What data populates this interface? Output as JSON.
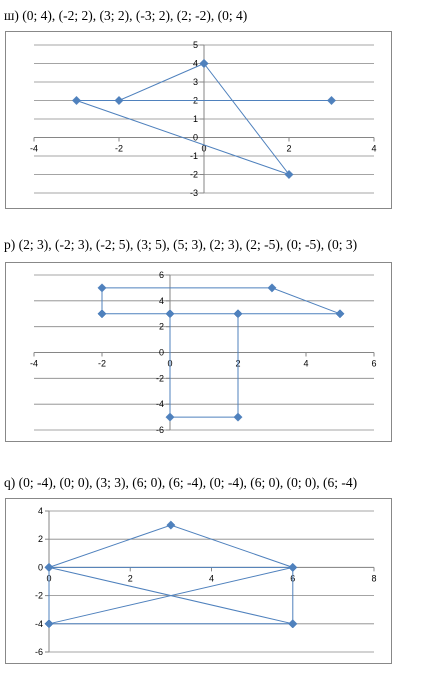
{
  "chart_data": [
    {
      "type": "scatter",
      "title": "ш) (0; 4), (-2; 2), (3; 2), (-3; 2), (2; -2), (0; 4)",
      "xlim": [
        -4,
        4
      ],
      "ylim": [
        -3,
        5
      ],
      "x_ticks": [
        -4,
        -2,
        0,
        2,
        4
      ],
      "y_ticks": [
        -3,
        -2,
        -1,
        0,
        1,
        2,
        3,
        4,
        5
      ],
      "grid": "horizontal",
      "x": [
        0,
        -2,
        3,
        -3,
        2,
        0
      ],
      "y": [
        4,
        2,
        2,
        2,
        -2,
        4
      ],
      "color": "#4F81BD"
    },
    {
      "type": "scatter",
      "title": "р) (2; 3), (-2; 3), (-2; 5), (3; 5), (5; 3), (2; 3), (2; -5), (0; -5), (0; 3)",
      "xlim": [
        -4,
        6
      ],
      "ylim": [
        -6,
        6
      ],
      "x_ticks": [
        -4,
        -2,
        0,
        2,
        4,
        6
      ],
      "y_ticks": [
        -6,
        -4,
        -2,
        0,
        2,
        4,
        6
      ],
      "grid": "horizontal",
      "x": [
        2,
        -2,
        -2,
        3,
        5,
        2,
        2,
        0,
        0
      ],
      "y": [
        3,
        3,
        5,
        5,
        3,
        3,
        -5,
        -5,
        3
      ],
      "color": "#4F81BD"
    },
    {
      "type": "scatter",
      "title": "q) (0; -4), (0; 0), (3; 3), (6; 0), (6; -4), (0; -4), (6; 0), (0; 0), (6; -4)",
      "xlim": [
        0,
        8
      ],
      "ylim": [
        -6,
        4
      ],
      "x_ticks": [
        0,
        2,
        4,
        6,
        8
      ],
      "y_ticks": [
        -6,
        -4,
        -2,
        0,
        2,
        4
      ],
      "grid": "horizontal",
      "x": [
        0,
        0,
        3,
        6,
        6,
        0,
        6,
        0,
        6
      ],
      "y": [
        -4,
        0,
        3,
        0,
        -4,
        -4,
        0,
        0,
        -4
      ],
      "color": "#4F81BD"
    }
  ]
}
